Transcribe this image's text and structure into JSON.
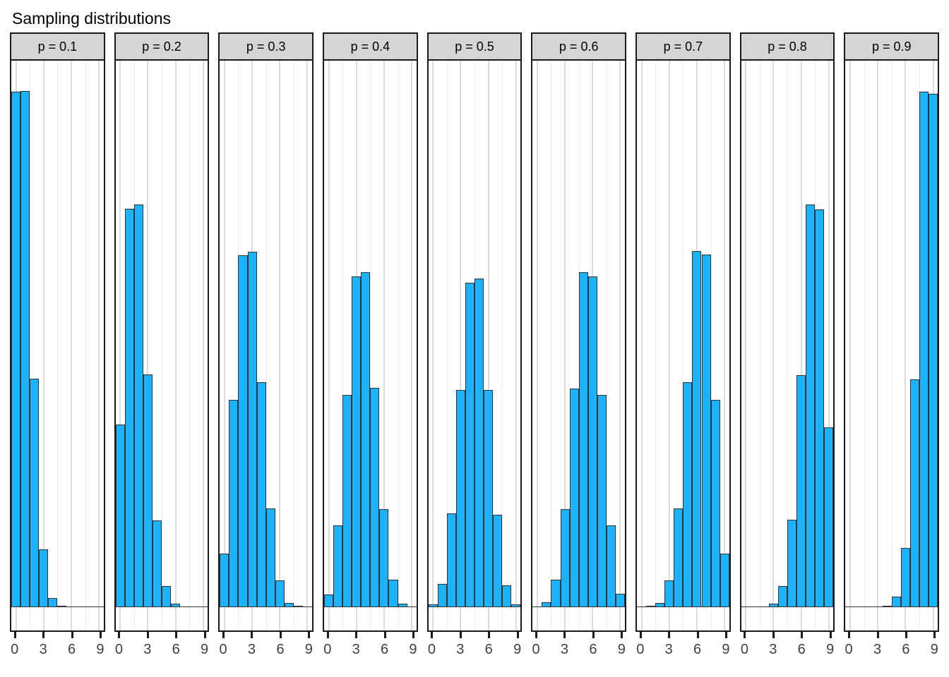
{
  "chart_data": {
    "type": "bar",
    "title": "Sampling distributions",
    "subtitle": "",
    "xlabel": "",
    "ylabel": "",
    "legend": "none",
    "grid": "vertical major at 0,3,6,9 and minor at 1.5,4.5,7.5; no horizontal gridlines",
    "x": [
      0,
      1,
      2,
      3,
      4,
      5,
      6,
      7,
      8,
      9
    ],
    "xlim": [
      -0.5,
      9.5
    ],
    "ylim": [
      -0.0175,
      0.41
    ],
    "x_ticks": [
      0,
      3,
      6,
      9
    ],
    "x_tick_labels": [
      "0",
      "3",
      "6",
      "9"
    ],
    "x_minor_gridlines": [
      1.5,
      4.5,
      7.5
    ],
    "facets": [
      {
        "label": "p = 0.1",
        "p": 0.1,
        "values": [
          0.387,
          0.3875,
          0.1716,
          0.0432,
          0.0068,
          0.0008,
          0.0001,
          0,
          0,
          0
        ]
      },
      {
        "label": "p = 0.2",
        "p": 0.2,
        "values": [
          0.1369,
          0.299,
          0.3022,
          0.1748,
          0.0653,
          0.0158,
          0.0026,
          0.0003,
          0,
          0
        ]
      },
      {
        "label": "p = 0.3",
        "p": 0.3,
        "values": [
          0.04,
          0.1558,
          0.2638,
          0.2669,
          0.169,
          0.0742,
          0.02,
          0.0032,
          0.0005,
          0
        ]
      },
      {
        "label": "p = 0.4",
        "p": 0.4,
        "values": [
          0.0095,
          0.0616,
          0.1595,
          0.2484,
          0.2511,
          0.1648,
          0.0737,
          0.0205,
          0.0026,
          0.0002
        ]
      },
      {
        "label": "p = 0.5",
        "p": 0.5,
        "values": [
          0.0021,
          0.0174,
          0.0705,
          0.1632,
          0.2432,
          0.2464,
          0.1632,
          0.0695,
          0.0163,
          0.002
        ]
      },
      {
        "label": "p = 0.6",
        "p": 0.6,
        "values": [
          0.0002,
          0.0035,
          0.0205,
          0.0737,
          0.1642,
          0.2511,
          0.2484,
          0.1595,
          0.0616,
          0.0101
        ]
      },
      {
        "label": "p = 0.7",
        "p": 0.7,
        "values": [
          0.0001,
          0.0005,
          0.003,
          0.02,
          0.0742,
          0.169,
          0.2674,
          0.2643,
          0.1558,
          0.04
        ]
      },
      {
        "label": "p = 0.8",
        "p": 0.8,
        "values": [
          0,
          0,
          0.0003,
          0.0025,
          0.0158,
          0.0658,
          0.1742,
          0.3022,
          0.2985,
          0.1348
        ]
      },
      {
        "label": "p = 0.9",
        "p": 0.9,
        "values": [
          0,
          0,
          0,
          0.0001,
          0.0008,
          0.0079,
          0.0447,
          0.1711,
          0.387,
          0.3853
        ]
      }
    ],
    "colors": {
      "bar_fill": "#1cb3fc",
      "bar_stroke": "#333333",
      "strip_fill": "#d5d5d5",
      "strip_border": "#1a1a1a",
      "panel_border": "#1a1a1a",
      "grid_major": "#dbdbdb",
      "grid_minor": "#ececec",
      "tick_mark": "#1a1a1a",
      "tick_label": "#404040",
      "title": "#000000",
      "background": "#ffffff"
    }
  }
}
